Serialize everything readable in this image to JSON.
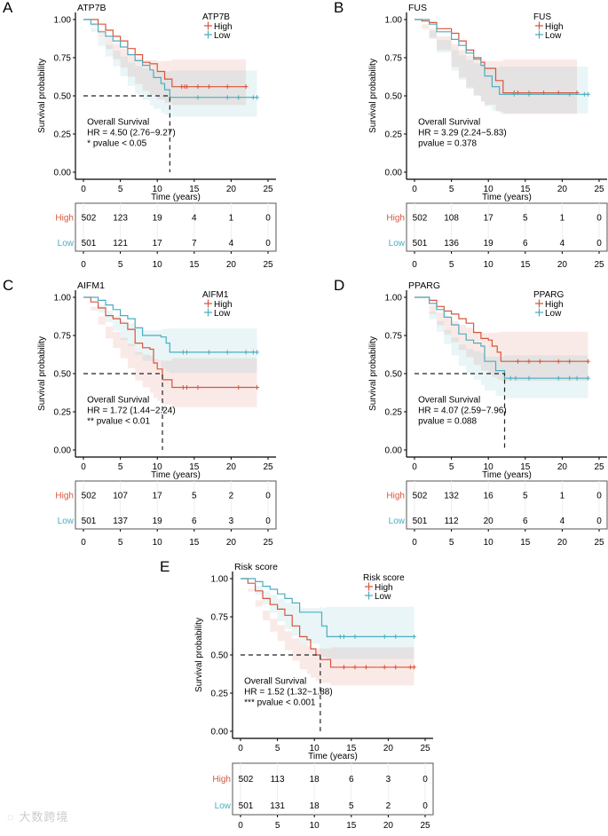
{
  "chart_data": [
    {
      "letter": "A",
      "title": "ATP7B",
      "type": "line",
      "legend_title": "ATP7B",
      "xlabel": "Time (years)",
      "ylabel": "Survival probability",
      "xlim": [
        0,
        25
      ],
      "ylim": [
        0,
        1
      ],
      "xticks": [
        "0",
        "5",
        "10",
        "15",
        "20",
        "25"
      ],
      "yticks": [
        "0.00",
        "0.25",
        "0.50",
        "0.75",
        "1.00"
      ],
      "annotation": [
        "Overall Survival",
        "HR = 4.50 (2.76−9.27)",
        "* pvalue < 0.05"
      ],
      "median": 11.7,
      "series": [
        {
          "name": "High",
          "color": "#d9553c",
          "ci_tail": [
            0.44,
            0.74
          ],
          "points": [
            [
              0,
              1
            ],
            [
              1,
              1
            ],
            [
              2,
              0.97
            ],
            [
              3,
              0.93
            ],
            [
              4,
              0.89
            ],
            [
              5,
              0.86
            ],
            [
              6,
              0.81
            ],
            [
              7,
              0.77
            ],
            [
              8,
              0.72
            ],
            [
              9,
              0.71
            ],
            [
              10,
              0.66
            ],
            [
              11,
              0.61
            ],
            [
              12,
              0.56
            ],
            [
              22,
              0.56
            ]
          ],
          "censor": [
            13.3,
            13.7,
            14,
            15.5,
            17,
            19.5,
            22
          ]
        },
        {
          "name": "Low",
          "color": "#4aaec0",
          "ci_tail": [
            0.36,
            0.67
          ],
          "points": [
            [
              0,
              1
            ],
            [
              1,
              0.97
            ],
            [
              2,
              0.92
            ],
            [
              3,
              0.89
            ],
            [
              4,
              0.86
            ],
            [
              5,
              0.82
            ],
            [
              6,
              0.77
            ],
            [
              7,
              0.73
            ],
            [
              8,
              0.7
            ],
            [
              9,
              0.67
            ],
            [
              9.5,
              0.62
            ],
            [
              10.5,
              0.58
            ],
            [
              11,
              0.54
            ],
            [
              11.7,
              0.49
            ],
            [
              23.5,
              0.49
            ]
          ],
          "censor": [
            15.5,
            19.5,
            21,
            23,
            23.5
          ]
        }
      ],
      "risk_table": {
        "High": [
          "502",
          "123",
          "19",
          "4",
          "1",
          "0"
        ],
        "Low": [
          "501",
          "121",
          "17",
          "7",
          "4",
          "0"
        ]
      }
    },
    {
      "letter": "B",
      "title": "FUS",
      "type": "line",
      "legend_title": "FUS",
      "xlabel": "Time (years)",
      "ylabel": "Survival probability",
      "xlim": [
        0,
        25
      ],
      "ylim": [
        0,
        1
      ],
      "xticks": [
        "0",
        "5",
        "10",
        "15",
        "20",
        "25"
      ],
      "yticks": [
        "0.00",
        "0.25",
        "0.50",
        "0.75",
        "1.00"
      ],
      "annotation": [
        "Overall Survival",
        "HR = 3.29 (2.24−5.83)",
        "pvalue = 0.378"
      ],
      "median": null,
      "series": [
        {
          "name": "High",
          "color": "#d9553c",
          "ci_tail": [
            0.38,
            0.74
          ],
          "points": [
            [
              0,
              1
            ],
            [
              1,
              0.99
            ],
            [
              2,
              0.98
            ],
            [
              3,
              0.94
            ],
            [
              5,
              0.91
            ],
            [
              6,
              0.86
            ],
            [
              7,
              0.8
            ],
            [
              8,
              0.75
            ],
            [
              9,
              0.72
            ],
            [
              9.5,
              0.68
            ],
            [
              11,
              0.6
            ],
            [
              12,
              0.52
            ],
            [
              22,
              0.52
            ]
          ],
          "censor": [
            13.5,
            14,
            15.5,
            17.5,
            19.5,
            22
          ]
        },
        {
          "name": "Low",
          "color": "#4aaec0",
          "ci_tail": [
            0.38,
            0.7
          ],
          "points": [
            [
              0,
              1
            ],
            [
              2,
              0.97
            ],
            [
              3,
              0.92
            ],
            [
              5,
              0.87
            ],
            [
              6,
              0.83
            ],
            [
              7,
              0.78
            ],
            [
              8,
              0.74
            ],
            [
              9,
              0.7
            ],
            [
              9.5,
              0.63
            ],
            [
              10.5,
              0.56
            ],
            [
              11.5,
              0.51
            ],
            [
              23.5,
              0.51
            ]
          ],
          "censor": [
            13.5,
            15.5,
            21,
            23,
            23.5
          ]
        }
      ],
      "risk_table": {
        "High": [
          "502",
          "108",
          "17",
          "5",
          "1",
          "0"
        ],
        "Low": [
          "501",
          "136",
          "19",
          "6",
          "4",
          "0"
        ]
      }
    },
    {
      "letter": "C",
      "title": "AIFM1",
      "type": "line",
      "legend_title": "AIFM1",
      "xlabel": "Time (years)",
      "ylabel": "Survival probability",
      "xlim": [
        0,
        25
      ],
      "ylim": [
        0,
        1
      ],
      "xticks": [
        "0",
        "5",
        "10",
        "15",
        "20",
        "25"
      ],
      "yticks": [
        "0.00",
        "0.25",
        "0.50",
        "0.75",
        "1.00"
      ],
      "annotation": [
        "Overall Survival",
        "HR = 1.72 (1.44−2.24)",
        "** pvalue < 0.01"
      ],
      "median": 10.7,
      "series": [
        {
          "name": "High",
          "color": "#d9553c",
          "ci_tail": [
            0.28,
            0.6
          ],
          "points": [
            [
              0,
              1
            ],
            [
              1,
              0.97
            ],
            [
              2,
              0.93
            ],
            [
              3,
              0.88
            ],
            [
              4,
              0.86
            ],
            [
              5,
              0.83
            ],
            [
              6,
              0.79
            ],
            [
              7,
              0.7
            ],
            [
              8,
              0.67
            ],
            [
              9,
              0.66
            ],
            [
              9.5,
              0.57
            ],
            [
              10,
              0.53
            ],
            [
              10.7,
              0.46
            ],
            [
              12,
              0.41
            ],
            [
              23.5,
              0.41
            ]
          ],
          "censor": [
            13.5,
            14,
            15.5,
            21,
            23.5
          ]
        },
        {
          "name": "Low",
          "color": "#4aaec0",
          "ci_tail": [
            0.5,
            0.8
          ],
          "points": [
            [
              0,
              1
            ],
            [
              2,
              0.98
            ],
            [
              3,
              0.95
            ],
            [
              4,
              0.92
            ],
            [
              5,
              0.88
            ],
            [
              6,
              0.86
            ],
            [
              7,
              0.8
            ],
            [
              8,
              0.75
            ],
            [
              10.5,
              0.74
            ],
            [
              11.2,
              0.7
            ],
            [
              11.7,
              0.64
            ],
            [
              23.5,
              0.64
            ]
          ],
          "censor": [
            13.5,
            14,
            17,
            19.5,
            22,
            23,
            23.5
          ]
        }
      ],
      "risk_table": {
        "High": [
          "502",
          "107",
          "17",
          "5",
          "2",
          "0"
        ],
        "Low": [
          "501",
          "137",
          "19",
          "6",
          "3",
          "0"
        ]
      }
    },
    {
      "letter": "D",
      "title": "PPARG",
      "type": "line",
      "legend_title": "PPARG",
      "xlabel": "Time (years)",
      "ylabel": "Survival probability",
      "xlim": [
        0,
        25
      ],
      "ylim": [
        0,
        1
      ],
      "xticks": [
        "0",
        "5",
        "10",
        "15",
        "20",
        "25"
      ],
      "yticks": [
        "0.00",
        "0.25",
        "0.50",
        "0.75",
        "1.00"
      ],
      "annotation": [
        "Overall Survival",
        "HR = 4.07 (2.59−7.96)",
        "pvalue = 0.088"
      ],
      "median": 12.2,
      "series": [
        {
          "name": "High",
          "color": "#d9553c",
          "ci_tail": [
            0.45,
            0.78
          ],
          "points": [
            [
              0,
              1
            ],
            [
              2,
              0.98
            ],
            [
              3,
              0.94
            ],
            [
              4,
              0.91
            ],
            [
              5,
              0.89
            ],
            [
              6,
              0.86
            ],
            [
              7,
              0.83
            ],
            [
              8,
              0.77
            ],
            [
              9,
              0.73
            ],
            [
              10,
              0.72
            ],
            [
              10.5,
              0.68
            ],
            [
              11.2,
              0.64
            ],
            [
              11.7,
              0.58
            ],
            [
              23.5,
              0.58
            ]
          ],
          "censor": [
            14,
            15.5,
            17,
            19.5,
            21,
            23.5
          ]
        },
        {
          "name": "Low",
          "color": "#4aaec0",
          "ci_tail": [
            0.34,
            0.62
          ],
          "points": [
            [
              0,
              1
            ],
            [
              2,
              0.96
            ],
            [
              3,
              0.92
            ],
            [
              4,
              0.87
            ],
            [
              5,
              0.82
            ],
            [
              6,
              0.76
            ],
            [
              7,
              0.72
            ],
            [
              8,
              0.7
            ],
            [
              9,
              0.68
            ],
            [
              9.5,
              0.58
            ],
            [
              11,
              0.52
            ],
            [
              12.2,
              0.47
            ],
            [
              23.5,
              0.47
            ]
          ],
          "censor": [
            13,
            13.7,
            15.5,
            19.5,
            21,
            22,
            23.5
          ]
        }
      ],
      "risk_table": {
        "High": [
          "502",
          "132",
          "16",
          "5",
          "1",
          "0"
        ],
        "Low": [
          "501",
          "112",
          "20",
          "6",
          "4",
          "0"
        ]
      }
    },
    {
      "letter": "E",
      "title": "Risk score",
      "type": "line",
      "legend_title": "Risk score",
      "xlabel": "Time (years)",
      "ylabel": "Survival probability",
      "xlim": [
        0,
        25
      ],
      "ylim": [
        0,
        1
      ],
      "xticks": [
        "0",
        "5",
        "10",
        "15",
        "20",
        "25"
      ],
      "yticks": [
        "0.00",
        "0.25",
        "0.50",
        "0.75",
        "1.00"
      ],
      "annotation": [
        "Overall Survival",
        "HR = 1.52 (1.32−1.88)",
        "*** pvalue < 0.001"
      ],
      "median": 10.8,
      "series": [
        {
          "name": "High",
          "color": "#d9553c",
          "ci_tail": [
            0.3,
            0.55
          ],
          "points": [
            [
              0,
              1
            ],
            [
              1,
              0.97
            ],
            [
              2,
              0.92
            ],
            [
              3,
              0.87
            ],
            [
              4,
              0.83
            ],
            [
              5,
              0.8
            ],
            [
              6,
              0.76
            ],
            [
              7,
              0.69
            ],
            [
              8,
              0.62
            ],
            [
              9,
              0.6
            ],
            [
              9.5,
              0.54
            ],
            [
              10.2,
              0.5
            ],
            [
              10.8,
              0.47
            ],
            [
              12.2,
              0.42
            ],
            [
              23.5,
              0.42
            ]
          ],
          "censor": [
            14,
            15.5,
            17,
            19.5,
            21,
            23,
            23.5
          ]
        },
        {
          "name": "Low",
          "color": "#4aaec0",
          "ci_tail": [
            0.47,
            0.82
          ],
          "points": [
            [
              0,
              1
            ],
            [
              2,
              0.98
            ],
            [
              3,
              0.95
            ],
            [
              4,
              0.93
            ],
            [
              5,
              0.9
            ],
            [
              6,
              0.87
            ],
            [
              7,
              0.84
            ],
            [
              8,
              0.78
            ],
            [
              10.7,
              0.78
            ],
            [
              11,
              0.69
            ],
            [
              11.7,
              0.62
            ],
            [
              23.5,
              0.62
            ]
          ],
          "censor": [
            13.5,
            14,
            15.5,
            19.5,
            21,
            23.5
          ]
        }
      ],
      "risk_table": {
        "High": [
          "502",
          "113",
          "18",
          "6",
          "3",
          "0"
        ],
        "Low": [
          "501",
          "131",
          "18",
          "5",
          "2",
          "0"
        ]
      }
    }
  ],
  "watermark": "大数跨境"
}
